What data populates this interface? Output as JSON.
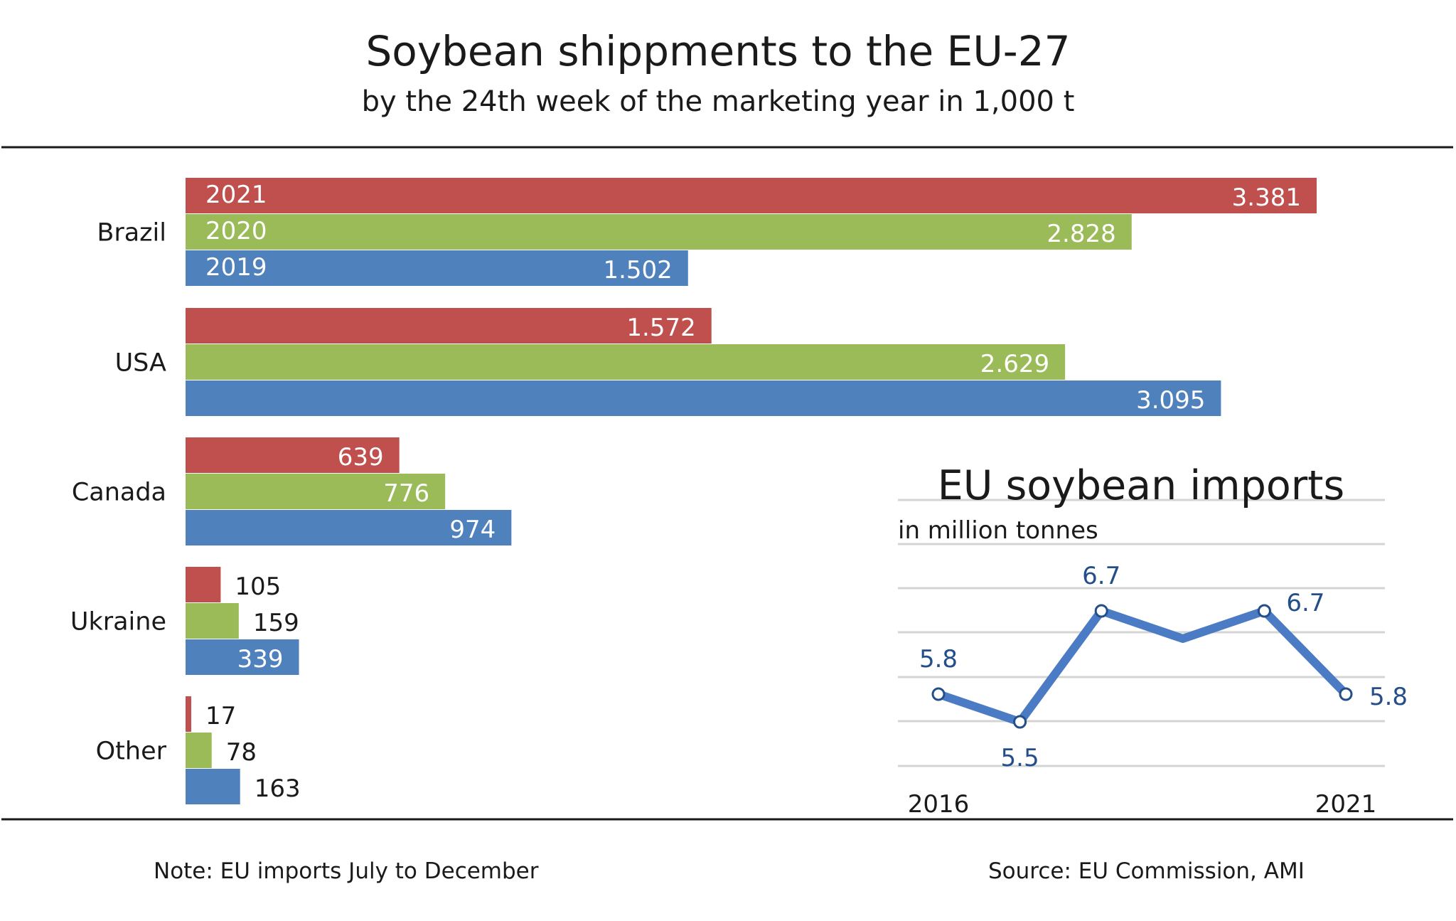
{
  "title": "Soybean shippments to the EU-27",
  "subtitle": "by the 24th week of the marketing year in 1,000 t",
  "note": "Note: EU imports July to December",
  "source": "Source:  EU Commission, AMI",
  "colors": {
    "2021": "#c0504d",
    "2020": "#9bbb59",
    "2019": "#4f81bd",
    "line": "#4a7bc4",
    "grid": "#d4d4d4",
    "rule": "#1a1a1a"
  },
  "chart_data": [
    {
      "type": "bar",
      "orientation": "horizontal",
      "title": "Soybean shippments to the EU-27",
      "subtitle": "by the 24th week of the marketing year in 1,000 t",
      "categories": [
        "Brazil",
        "USA",
        "Canada",
        "Ukraine",
        "Other"
      ],
      "series": [
        {
          "name": "2021",
          "values": [
            3381,
            1572,
            639,
            105,
            17
          ],
          "labels": [
            "3.381",
            "1.572",
            "639",
            "105",
            "17"
          ]
        },
        {
          "name": "2020",
          "values": [
            2828,
            2629,
            776,
            159,
            78
          ],
          "labels": [
            "2.828",
            "2.629",
            "776",
            "159",
            "78"
          ]
        },
        {
          "name": "2019",
          "values": [
            1502,
            3095,
            974,
            339,
            163
          ],
          "labels": [
            "1.502",
            "3.095",
            "974",
            "339",
            "163"
          ]
        }
      ],
      "xlim": [
        0,
        3400
      ],
      "legend": "inline series names on first category bars",
      "grid": false
    },
    {
      "type": "line",
      "title": "EU soybean imports",
      "subtitle": "in million tonnes",
      "x": [
        2016,
        2017,
        2018,
        2019,
        2020,
        2021
      ],
      "values": [
        5.8,
        5.5,
        6.7,
        6.4,
        6.7,
        5.8
      ],
      "point_labels": [
        "5.8",
        "5.5",
        "6.7",
        "",
        "6.7",
        "5.8"
      ],
      "markers": [
        true,
        true,
        true,
        false,
        true,
        true
      ],
      "x_tick_labels": [
        "2016",
        "",
        "",
        "",
        "",
        "2021"
      ],
      "ylim": [
        5.0,
        7.4
      ],
      "grid": true
    }
  ]
}
